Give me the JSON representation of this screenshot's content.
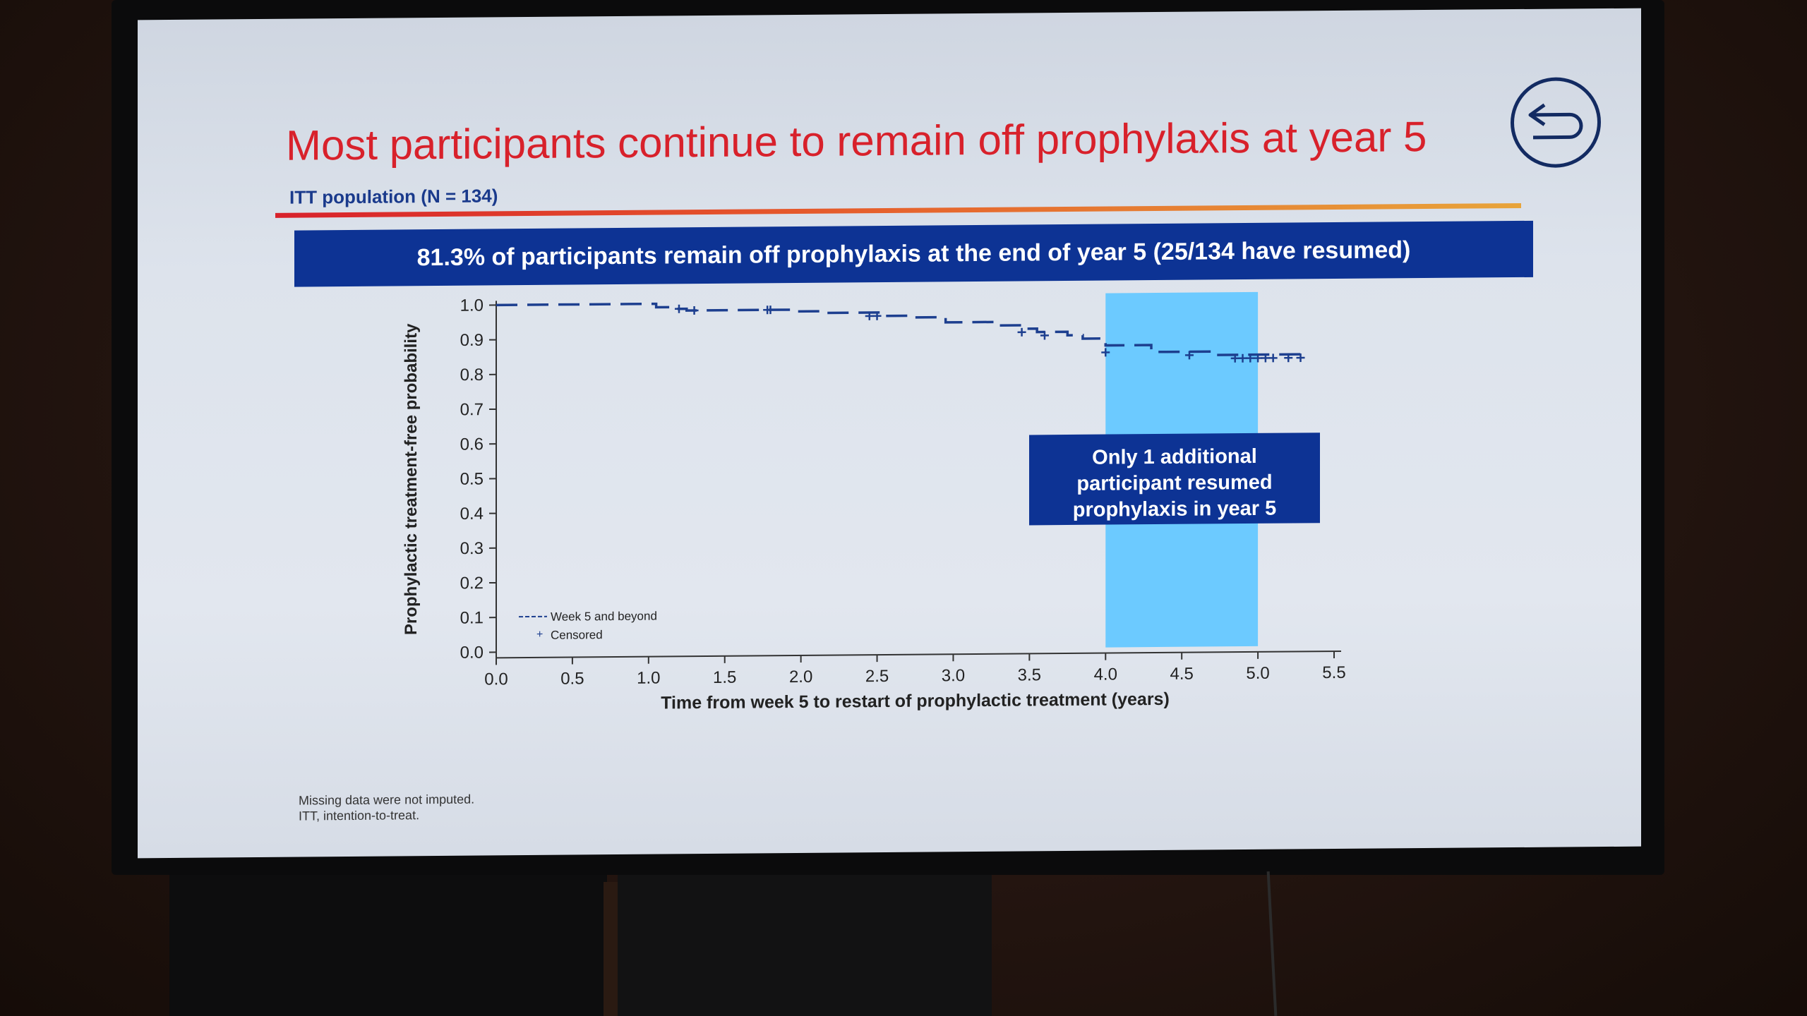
{
  "slide": {
    "title": "Most participants continue to remain off prophylaxis at year 5",
    "subtitle": "ITT population (N = 134)",
    "banner": "81.3% of participants remain off prophylaxis at the end of year 5 (25/134 have resumed)",
    "callout_lines": [
      "Only 1 additional",
      "participant resumed",
      "prophylaxis in year 5"
    ],
    "footnotes": [
      "Missing data were not imputed.",
      "ITT, intention-to-treat."
    ],
    "back_icon": "return-arrow-icon"
  },
  "colors": {
    "title": "#d8212b",
    "navy": "#0d3394",
    "highlight": "#6ccaff",
    "curve": "#1d3f8f"
  },
  "chart_data": {
    "type": "line",
    "title": "",
    "xlabel": "Time from week 5 to restart of prophylactic treatment (years)",
    "ylabel": "Prophylactic treatment-free probability",
    "xlim": [
      0.0,
      5.5
    ],
    "ylim": [
      0.0,
      1.0
    ],
    "x_ticks": [
      "0.0",
      "0.5",
      "1.0",
      "1.5",
      "2.0",
      "2.5",
      "3.0",
      "3.5",
      "4.0",
      "4.5",
      "5.0",
      "5.5"
    ],
    "y_ticks": [
      "0.0",
      "0.1",
      "0.2",
      "0.3",
      "0.4",
      "0.5",
      "0.6",
      "0.7",
      "0.8",
      "0.9",
      "1.0"
    ],
    "highlight_range": [
      4.0,
      5.0
    ],
    "legend": {
      "placement": "bottom-left",
      "entries": [
        "Week 5 and beyond",
        "Censored"
      ]
    },
    "series": [
      {
        "name": "Week 5 and beyond",
        "style": "dashed-step",
        "x": [
          0.0,
          1.05,
          1.15,
          1.25,
          1.75,
          1.95,
          2.15,
          2.55,
          2.75,
          2.95,
          3.3,
          3.45,
          3.55,
          3.75,
          3.85,
          4.0,
          4.3,
          4.7,
          5.3
        ],
        "y": [
          1.0,
          0.99,
          0.985,
          0.98,
          0.98,
          0.975,
          0.97,
          0.96,
          0.955,
          0.94,
          0.93,
          0.92,
          0.91,
          0.9,
          0.89,
          0.87,
          0.85,
          0.84,
          0.83
        ]
      }
    ],
    "censored": {
      "name": "Censored",
      "x": [
        1.2,
        1.3,
        1.78,
        1.8,
        2.45,
        2.5,
        3.45,
        3.6,
        4.0,
        4.55,
        4.85,
        4.9,
        4.95,
        5.0,
        5.05,
        5.1,
        5.2,
        5.28
      ],
      "y": [
        0.985,
        0.98,
        0.98,
        0.98,
        0.96,
        0.96,
        0.91,
        0.9,
        0.85,
        0.84,
        0.83,
        0.83,
        0.83,
        0.83,
        0.83,
        0.83,
        0.83,
        0.83
      ]
    }
  }
}
